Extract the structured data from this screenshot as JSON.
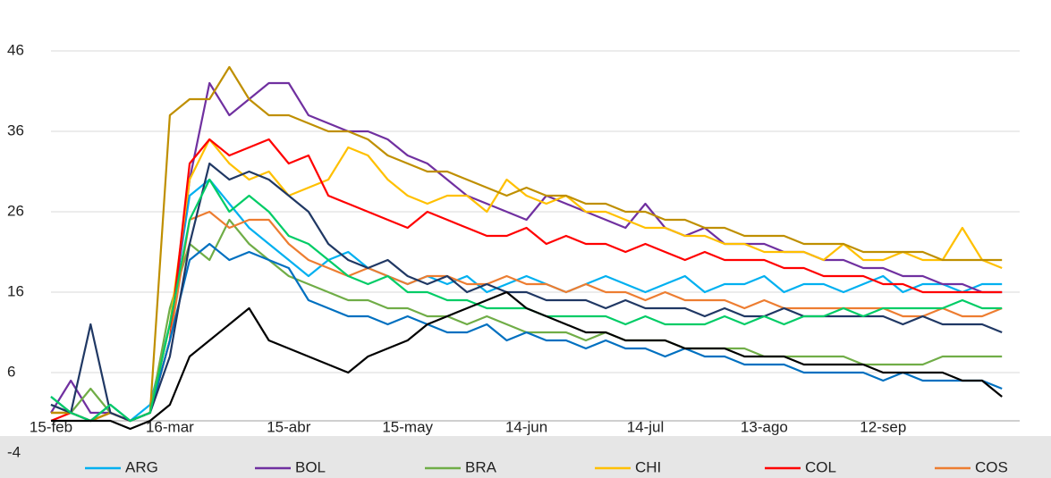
{
  "chart_data": {
    "type": "line",
    "categories": [
      "15-feb",
      null,
      null,
      null,
      null,
      null,
      "16-mar",
      null,
      null,
      null,
      null,
      null,
      "15-abr",
      null,
      null,
      null,
      null,
      null,
      "15-may",
      null,
      null,
      null,
      null,
      null,
      "14-jun",
      null,
      null,
      null,
      null,
      null,
      "14-jul",
      null,
      null,
      null,
      null,
      null,
      "13-ago",
      null,
      null,
      null,
      null,
      null,
      "12-sep",
      null,
      null,
      null,
      null,
      null,
      null
    ],
    "ylim": [
      -4,
      52
    ],
    "yticks": [
      -4,
      6,
      16,
      26,
      36,
      46
    ],
    "grid": true,
    "legend": "bottom",
    "series": [
      {
        "name": "ARG",
        "color": "#00B0F0",
        "values": [
          2,
          1,
          0,
          1,
          0,
          2,
          12,
          28,
          30,
          27,
          24,
          22,
          20,
          18,
          20,
          21,
          19,
          18,
          17,
          18,
          17,
          18,
          16,
          17,
          18,
          17,
          16,
          17,
          18,
          17,
          16,
          17,
          18,
          16,
          17,
          17,
          18,
          16,
          17,
          17,
          16,
          17,
          18,
          16,
          17,
          17,
          16,
          17,
          17
        ]
      },
      {
        "name": "BOL",
        "color": "#7030A0",
        "values": [
          1,
          5,
          1,
          1,
          0,
          1,
          10,
          30,
          42,
          38,
          40,
          42,
          42,
          38,
          37,
          36,
          36,
          35,
          33,
          32,
          30,
          28,
          27,
          26,
          25,
          28,
          27,
          26,
          25,
          24,
          27,
          24,
          23,
          24,
          22,
          22,
          22,
          21,
          21,
          20,
          20,
          19,
          19,
          18,
          18,
          17,
          17,
          16,
          16
        ]
      },
      {
        "name": "BRA",
        "color": "#70AD47",
        "values": [
          2,
          1,
          4,
          1,
          0,
          1,
          14,
          22,
          20,
          25,
          22,
          20,
          18,
          17,
          16,
          15,
          15,
          14,
          14,
          13,
          13,
          12,
          13,
          12,
          11,
          11,
          11,
          10,
          11,
          10,
          10,
          10,
          9,
          9,
          9,
          9,
          8,
          8,
          8,
          8,
          8,
          7,
          7,
          7,
          7,
          8,
          8,
          8,
          8
        ]
      },
      {
        "name": "CHI",
        "color": "#FFC000",
        "values": [
          1,
          1,
          0,
          1,
          0,
          1,
          12,
          30,
          35,
          32,
          30,
          31,
          28,
          29,
          30,
          34,
          33,
          30,
          28,
          27,
          28,
          28,
          26,
          30,
          28,
          27,
          28,
          26,
          26,
          25,
          24,
          24,
          23,
          23,
          22,
          22,
          21,
          21,
          21,
          20,
          22,
          20,
          20,
          21,
          20,
          20,
          24,
          20,
          19
        ]
      },
      {
        "name": "COL",
        "color": "#FF0000",
        "values": [
          0,
          1,
          0,
          1,
          0,
          1,
          10,
          32,
          35,
          33,
          34,
          35,
          32,
          33,
          28,
          27,
          26,
          25,
          24,
          26,
          25,
          24,
          23,
          23,
          24,
          22,
          23,
          22,
          22,
          21,
          22,
          21,
          20,
          21,
          20,
          20,
          20,
          19,
          19,
          18,
          18,
          18,
          17,
          17,
          16,
          16,
          16,
          16,
          16
        ]
      },
      {
        "name": "COS",
        "color": "#ED7D31",
        "values": [
          1,
          1,
          0,
          1,
          0,
          1,
          10,
          25,
          26,
          24,
          25,
          25,
          22,
          20,
          19,
          18,
          19,
          18,
          17,
          18,
          18,
          17,
          17,
          18,
          17,
          17,
          16,
          17,
          16,
          16,
          15,
          16,
          15,
          15,
          15,
          14,
          15,
          14,
          14,
          14,
          14,
          14,
          14,
          13,
          13,
          14,
          13,
          13,
          14
        ]
      },
      {
        "color": "#BF8F00",
        "values": [
          1,
          1,
          0,
          1,
          0,
          1,
          38,
          40,
          40,
          44,
          40,
          38,
          38,
          37,
          36,
          36,
          35,
          33,
          32,
          31,
          31,
          30,
          29,
          28,
          29,
          28,
          28,
          27,
          27,
          26,
          26,
          25,
          25,
          24,
          24,
          23,
          23,
          23,
          22,
          22,
          22,
          21,
          21,
          21,
          21,
          20,
          20,
          20,
          20
        ]
      },
      {
        "color": "#0070C0",
        "values": [
          3,
          1,
          0,
          2,
          0,
          1,
          10,
          20,
          22,
          20,
          21,
          20,
          19,
          15,
          14,
          13,
          13,
          12,
          13,
          12,
          11,
          11,
          12,
          10,
          11,
          10,
          10,
          9,
          10,
          9,
          9,
          8,
          9,
          8,
          8,
          7,
          7,
          7,
          6,
          6,
          6,
          6,
          5,
          6,
          5,
          5,
          5,
          5,
          4
        ]
      },
      {
        "color": "#203864",
        "values": [
          2,
          1,
          12,
          1,
          0,
          1,
          8,
          22,
          32,
          30,
          31,
          30,
          28,
          26,
          22,
          20,
          19,
          20,
          18,
          17,
          18,
          16,
          17,
          16,
          16,
          15,
          15,
          15,
          14,
          15,
          14,
          14,
          14,
          13,
          14,
          13,
          13,
          14,
          13,
          13,
          13,
          13,
          13,
          12,
          13,
          12,
          12,
          12,
          11
        ]
      },
      {
        "color": "#00CC66",
        "values": [
          3,
          1,
          0,
          2,
          0,
          1,
          12,
          25,
          30,
          26,
          28,
          26,
          23,
          22,
          20,
          18,
          17,
          18,
          16,
          16,
          15,
          15,
          14,
          14,
          14,
          13,
          13,
          13,
          13,
          12,
          13,
          12,
          12,
          12,
          13,
          12,
          13,
          12,
          13,
          13,
          14,
          13,
          14,
          14,
          14,
          14,
          15,
          14,
          14
        ]
      },
      {
        "color": "#000000",
        "values": [
          0,
          0,
          0,
          0,
          -1,
          0,
          2,
          8,
          10,
          12,
          14,
          10,
          9,
          8,
          7,
          6,
          8,
          9,
          10,
          12,
          13,
          14,
          15,
          16,
          14,
          13,
          12,
          11,
          11,
          10,
          10,
          10,
          9,
          9,
          9,
          8,
          8,
          8,
          7,
          7,
          7,
          7,
          6,
          6,
          6,
          6,
          5,
          5,
          3
        ]
      }
    ]
  }
}
